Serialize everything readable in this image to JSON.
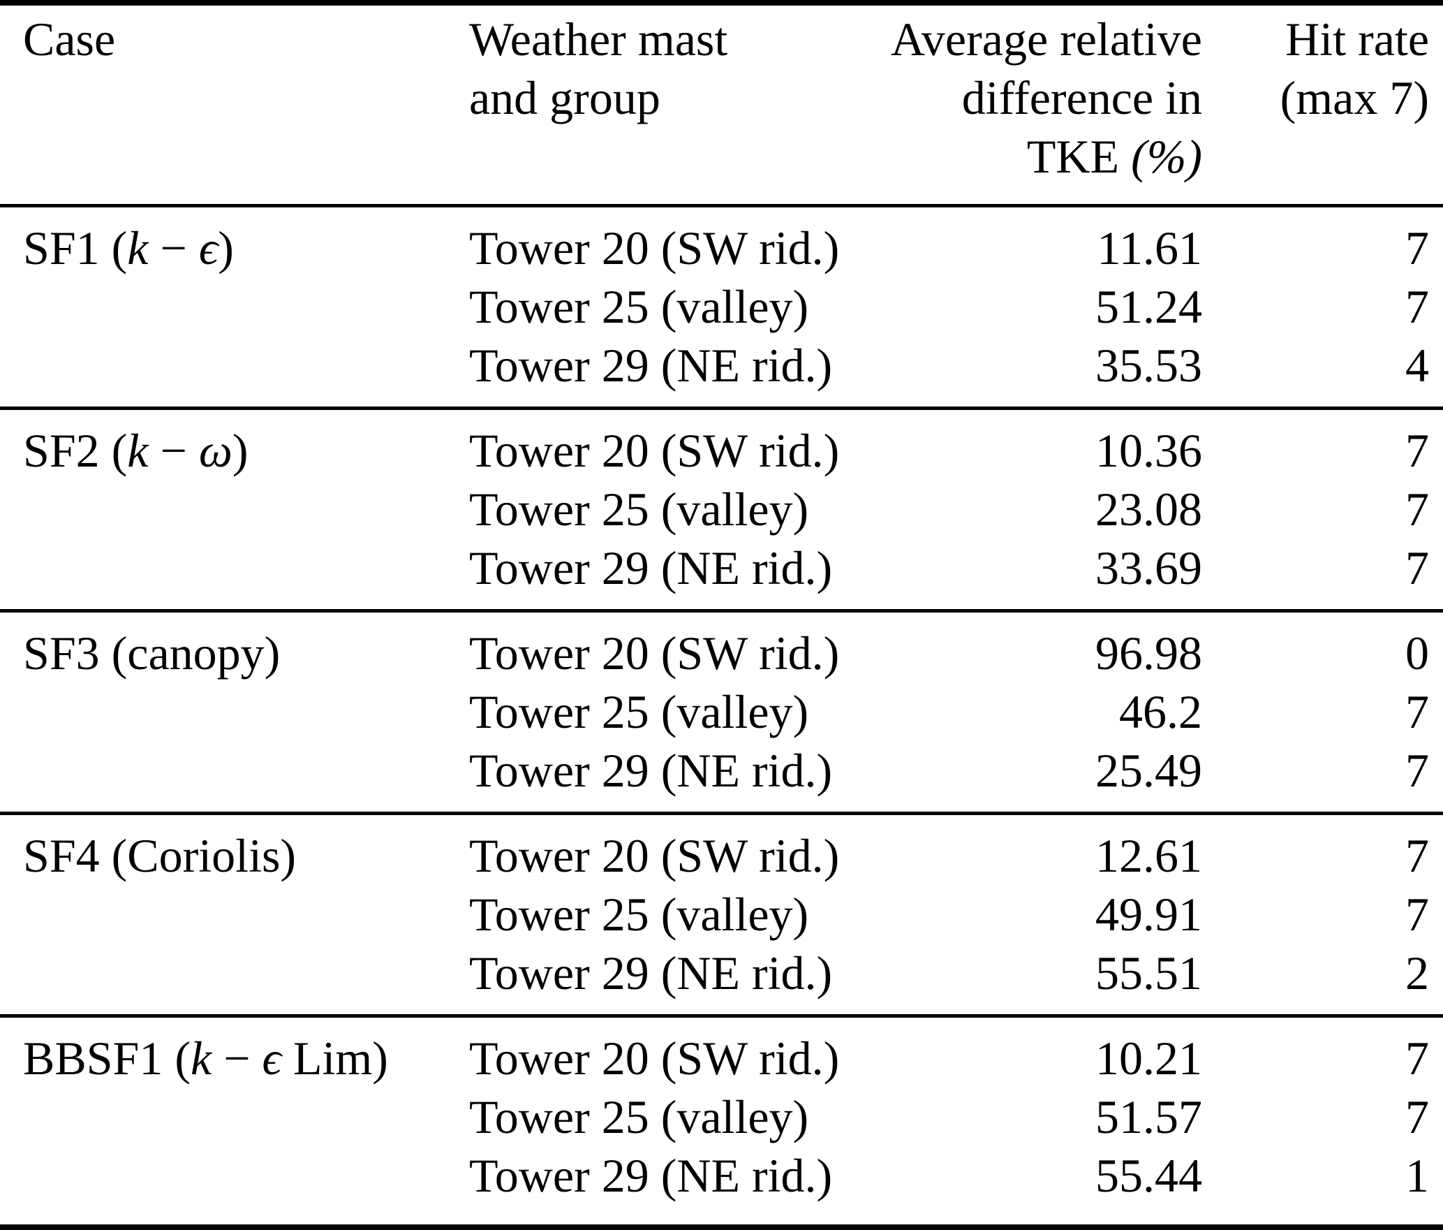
{
  "table": {
    "headers": {
      "case": "Case",
      "mast": {
        "lines": [
          "Weather mast",
          "and group"
        ]
      },
      "tke": {
        "lines": [
          "Average relative",
          "difference in",
          "TKE (%)"
        ]
      },
      "hit": {
        "lines": [
          "Hit rate",
          "(max 7)"
        ]
      }
    },
    "groups": [
      {
        "case_label": "SF1 (k − ϵ)",
        "rows": [
          {
            "mast": "Tower 20 (SW rid.)",
            "tke": "11.61",
            "hit": "7"
          },
          {
            "mast": "Tower 25 (valley)",
            "tke": "51.24",
            "hit": "7"
          },
          {
            "mast": "Tower 29 (NE rid.)",
            "tke": "35.53",
            "hit": "4"
          }
        ]
      },
      {
        "case_label": "SF2 (k − ω)",
        "rows": [
          {
            "mast": "Tower 20 (SW rid.)",
            "tke": "10.36",
            "hit": "7"
          },
          {
            "mast": "Tower 25 (valley)",
            "tke": "23.08",
            "hit": "7"
          },
          {
            "mast": "Tower 29 (NE rid.)",
            "tke": "33.69",
            "hit": "7"
          }
        ]
      },
      {
        "case_label": "SF3 (canopy)",
        "rows": [
          {
            "mast": "Tower 20 (SW rid.)",
            "tke": "96.98",
            "hit": "0"
          },
          {
            "mast": "Tower 25 (valley)",
            "tke": "46.2",
            "hit": "7"
          },
          {
            "mast": "Tower 29 (NE rid.)",
            "tke": "25.49",
            "hit": "7"
          }
        ]
      },
      {
        "case_label": "SF4 (Coriolis)",
        "rows": [
          {
            "mast": "Tower 20 (SW rid.)",
            "tke": "12.61",
            "hit": "7"
          },
          {
            "mast": "Tower 25 (valley)",
            "tke": "49.91",
            "hit": "7"
          },
          {
            "mast": "Tower 29 (NE rid.)",
            "tke": "55.51",
            "hit": "2"
          }
        ]
      },
      {
        "case_label": "BBSF1 (k − ϵ Lim)",
        "rows": [
          {
            "mast": "Tower 20 (SW rid.)",
            "tke": "10.21",
            "hit": "7"
          },
          {
            "mast": "Tower 25 (valley)",
            "tke": "51.57",
            "hit": "7"
          },
          {
            "mast": "Tower 29 (NE rid.)",
            "tke": "55.44",
            "hit": "1"
          }
        ]
      }
    ]
  }
}
